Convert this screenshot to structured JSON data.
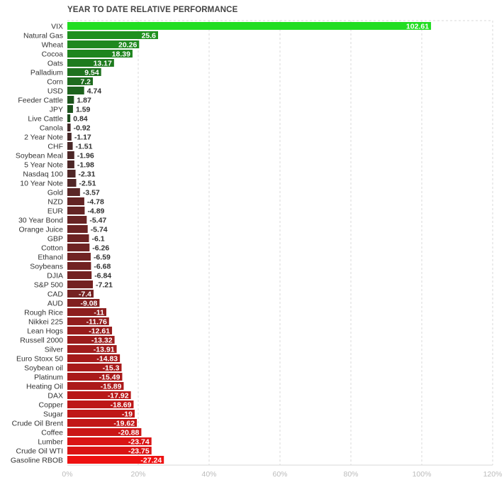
{
  "chart_data": {
    "type": "bar",
    "orientation": "horizontal",
    "title": "YEAR TO DATE RELATIVE PERFORMANCE",
    "xlabel": "",
    "ylabel": "",
    "xlim": [
      0,
      120
    ],
    "xtick_values": [
      0,
      20,
      40,
      60,
      80,
      100,
      120
    ],
    "xtick_labels": [
      "0%",
      "20%",
      "40%",
      "60%",
      "80%",
      "100%",
      "120%"
    ],
    "grid": true,
    "grid_style": "dashed",
    "positive_colors": {
      "strong": "#22dd22",
      "weak": "#1c3a1c"
    },
    "negative_colors": {
      "weak": "#3a2a2a",
      "strong": "#ee1111"
    },
    "categories": [
      "VIX",
      "Natural Gas",
      "Wheat",
      "Cocoa",
      "Oats",
      "Palladium",
      "Corn",
      "USD",
      "Feeder Cattle",
      "JPY",
      "Live Cattle",
      "Canola",
      "2 Year Note",
      "CHF",
      "Soybean Meal",
      "5 Year Note",
      "Nasdaq 100",
      "10 Year Note",
      "Gold",
      "NZD",
      "EUR",
      "30 Year Bond",
      "Orange Juice",
      "GBP",
      "Cotton",
      "Ethanol",
      "Soybeans",
      "DJIA",
      "S&P 500",
      "CAD",
      "AUD",
      "Rough Rice",
      "Nikkei 225",
      "Lean Hogs",
      "Russell 2000",
      "Silver",
      "Euro Stoxx 50",
      "Soybean oil",
      "Platinum",
      "Heating Oil",
      "DAX",
      "Copper",
      "Sugar",
      "Crude Oil Brent",
      "Coffee",
      "Lumber",
      "Crude Oil WTI",
      "Gasoline RBOB"
    ],
    "values": [
      102.61,
      25.6,
      20.26,
      18.39,
      13.17,
      9.54,
      7.2,
      4.74,
      1.87,
      1.59,
      0.84,
      -0.92,
      -1.17,
      -1.51,
      -1.96,
      -1.98,
      -2.31,
      -2.51,
      -3.57,
      -4.78,
      -4.89,
      -5.47,
      -5.74,
      -6.1,
      -6.26,
      -6.59,
      -6.68,
      -6.84,
      -7.21,
      -7.4,
      -9.08,
      -11,
      -11.76,
      -12.61,
      -13.32,
      -13.91,
      -14.83,
      -15.3,
      -15.49,
      -15.89,
      -17.92,
      -18.69,
      -19,
      -19.62,
      -20.88,
      -23.74,
      -23.75,
      -27.24
    ],
    "value_labels": [
      "102.61",
      "25.6",
      "20.26",
      "18.39",
      "13.17",
      "9.54",
      "7.2",
      "4.74",
      "1.87",
      "1.59",
      "0.84",
      "-0.92",
      "-1.17",
      "-1.51",
      "-1.96",
      "-1.98",
      "-2.31",
      "-2.51",
      "-3.57",
      "-4.78",
      "-4.89",
      "-5.47",
      "-5.74",
      "-6.1",
      "-6.26",
      "-6.59",
      "-6.68",
      "-6.84",
      "-7.21",
      "-7.4",
      "-9.08",
      "-11",
      "-11.76",
      "-12.61",
      "-13.32",
      "-13.91",
      "-14.83",
      "-15.3",
      "-15.49",
      "-15.89",
      "-17.92",
      "-18.69",
      "-19",
      "-19.62",
      "-20.88",
      "-23.74",
      "-23.75",
      "-27.24"
    ],
    "bar_length": "absolute value"
  }
}
